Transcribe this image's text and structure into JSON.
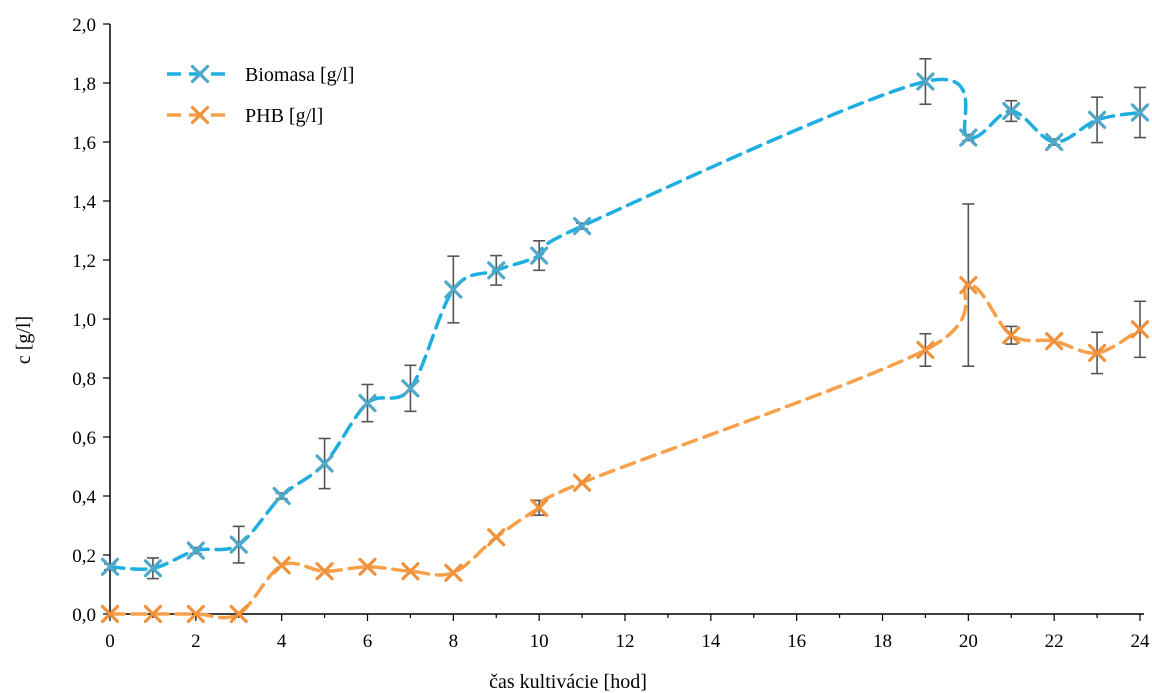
{
  "chart_data": {
    "type": "line",
    "title": "",
    "xlabel": "čas kultivácie [hod]",
    "ylabel": "c [g/l]",
    "xlim": [
      0,
      24
    ],
    "ylim": [
      0,
      2.0
    ],
    "x_ticks": [
      "0",
      "2",
      "4",
      "6",
      "8",
      "10",
      "12",
      "14",
      "16",
      "18",
      "20",
      "22",
      "24"
    ],
    "y_ticks": [
      "0,0",
      "0,2",
      "0,4",
      "0,6",
      "0,8",
      "1,0",
      "1,2",
      "1,4",
      "1,6",
      "1,8",
      "2,0"
    ],
    "grid": false,
    "legend_position": "top-left",
    "series": [
      {
        "name": "Biomasa [g/l]",
        "color": "#1EAEE0",
        "marker_color": "#4FA8C8",
        "x": [
          0,
          1,
          2,
          3,
          4,
          5,
          6,
          7,
          8,
          9,
          10,
          11,
          19,
          20,
          21,
          22,
          23,
          24
        ],
        "y": [
          0.16,
          0.155,
          0.215,
          0.235,
          0.4,
          0.51,
          0.715,
          0.765,
          1.1,
          1.165,
          1.215,
          1.315,
          1.805,
          1.615,
          1.705,
          1.6,
          1.675,
          1.7
        ],
        "error": [
          0.01,
          0.035,
          0.01,
          0.062,
          0.01,
          0.085,
          0.063,
          0.078,
          0.113,
          0.05,
          0.05,
          0.01,
          0.077,
          0.01,
          0.035,
          0.01,
          0.077,
          0.085
        ]
      },
      {
        "name": "PHB [g/l]",
        "color": "#F7A04A",
        "marker_color": "#F0913B",
        "x": [
          0,
          1,
          2,
          3,
          4,
          5,
          6,
          7,
          8,
          9,
          10,
          11,
          19,
          20,
          21,
          22,
          23,
          24
        ],
        "y": [
          0.0,
          0.0,
          0.0,
          0.0,
          0.165,
          0.145,
          0.16,
          0.145,
          0.14,
          0.26,
          0.36,
          0.445,
          0.895,
          1.115,
          0.945,
          0.925,
          0.885,
          0.965
        ],
        "error": [
          0,
          0,
          0,
          0,
          0,
          0,
          0,
          0,
          0,
          0,
          0.025,
          0,
          0.055,
          0.275,
          0.03,
          0,
          0.07,
          0.095
        ]
      }
    ],
    "error_bar_color": "#555555"
  }
}
